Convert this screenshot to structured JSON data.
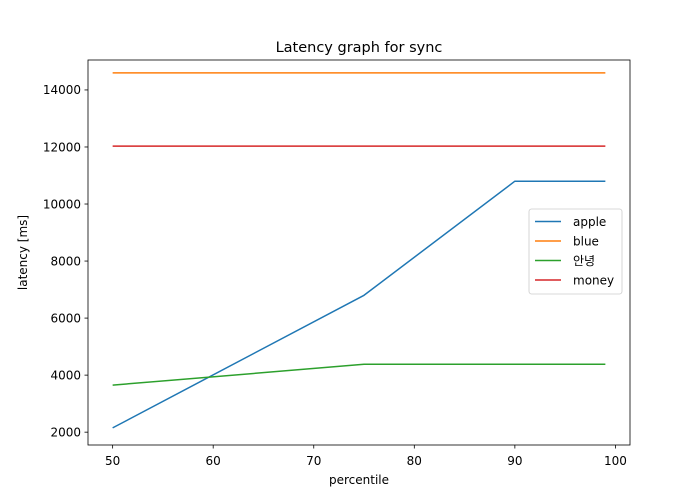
{
  "chart_data": {
    "type": "line",
    "title": "Latency graph for sync",
    "xlabel": "percentile",
    "ylabel": "latency [ms]",
    "xlim": [
      47.55,
      101.45
    ],
    "ylim": [
      1550,
      15050
    ],
    "xticks": [
      50,
      60,
      70,
      80,
      90,
      100
    ],
    "yticks": [
      2000,
      4000,
      6000,
      8000,
      10000,
      12000,
      14000
    ],
    "grid": false,
    "legend": "center-right",
    "x": [
      50,
      75,
      90,
      99
    ],
    "series": [
      {
        "name": "apple",
        "color": "#1f77b4",
        "values": [
          2150,
          6800,
          10800,
          10800
        ]
      },
      {
        "name": "blue",
        "color": "#ff7f0e",
        "values": [
          14600,
          14600,
          14600,
          14600
        ]
      },
      {
        "name": "안녕",
        "color": "#2ca02c",
        "values": [
          3650,
          4380,
          4380,
          4380
        ]
      },
      {
        "name": "money",
        "color": "#d62728",
        "values": [
          12030,
          12030,
          12030,
          12030
        ]
      }
    ]
  }
}
